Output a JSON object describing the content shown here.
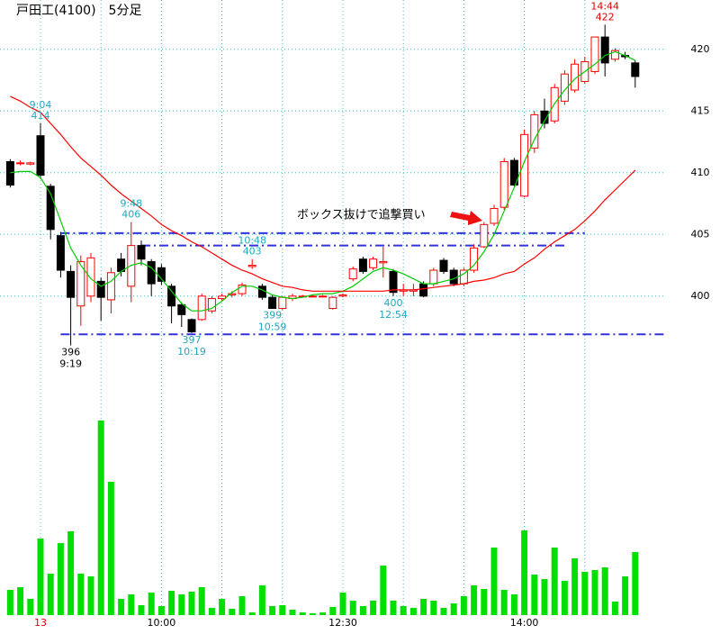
{
  "chart_data": {
    "type": "candlestick",
    "title": "戸田工(4100)　5分足",
    "categories": [
      null,
      null,
      null,
      "13",
      null,
      null,
      null,
      null,
      null,
      null,
      null,
      null,
      null,
      null,
      null,
      "10:00",
      null,
      null,
      null,
      null,
      null,
      null,
      null,
      null,
      null,
      null,
      null,
      null,
      null,
      null,
      null,
      null,
      null,
      "12:30",
      null,
      null,
      null,
      null,
      null,
      null,
      null,
      null,
      null,
      null,
      null,
      null,
      null,
      null,
      null,
      null,
      null,
      "14:00",
      null,
      null,
      null,
      null,
      null,
      null,
      null,
      null,
      null,
      null,
      null
    ],
    "open": [
      410.9,
      410.8,
      410.7,
      413.0,
      408.9,
      404.9,
      402.0,
      399.2,
      400.0,
      401.2,
      399.7,
      403.0,
      400.8,
      404.1,
      402.8,
      402.3,
      400.8,
      399.3,
      398.1,
      398.1,
      398.8,
      399.8,
      400.1,
      400.2,
      402.4,
      400.8,
      399.9,
      399.0,
      399.8,
      400.0,
      400.0,
      400.0,
      399.0,
      400.0,
      401.4,
      403.0,
      402.3,
      402.7,
      402.0,
      400.4,
      400.4,
      401.0,
      401.0,
      402.9,
      402.1,
      401.0,
      402.1,
      404.0,
      405.9,
      407.2,
      411.0,
      408.1,
      412.0,
      415.0,
      414.2,
      415.8,
      416.7,
      417.4,
      418.2,
      421.0,
      419.2,
      419.5,
      418.9
    ],
    "high": [
      411.1,
      411.0,
      410.9,
      414.0,
      409.1,
      405.2,
      402.5,
      403.3,
      403.5,
      401.5,
      402.3,
      403.5,
      406.0,
      404.5,
      403.0,
      402.6,
      401.0,
      399.5,
      398.2,
      400.2,
      400.0,
      400.2,
      400.4,
      401.1,
      403.0,
      401.0,
      400.1,
      400.0,
      400.2,
      400.1,
      400.1,
      400.1,
      400.0,
      400.2,
      402.4,
      403.2,
      403.2,
      404.0,
      402.2,
      401.0,
      401.0,
      401.2,
      402.3,
      403.1,
      402.3,
      402.3,
      404.2,
      406.0,
      407.4,
      411.2,
      411.2,
      413.5,
      415.0,
      416.0,
      417.2,
      418.3,
      419.2,
      419.4,
      421.0,
      422.0,
      420.1,
      419.8,
      419.1
    ],
    "low": [
      408.8,
      410.6,
      410.6,
      409.5,
      404.6,
      401.5,
      396.0,
      397.6,
      399.5,
      398.0,
      398.6,
      401.6,
      399.5,
      402.5,
      400.0,
      400.9,
      397.8,
      397.5,
      397.0,
      398.0,
      398.6,
      399.6,
      399.9,
      400.0,
      402.2,
      399.7,
      399.0,
      398.9,
      399.6,
      399.9,
      399.9,
      399.9,
      398.9,
      399.9,
      401.2,
      401.8,
      402.1,
      401.5,
      400.0,
      400.0,
      400.0,
      399.9,
      400.8,
      401.8,
      400.8,
      400.8,
      401.9,
      403.9,
      405.7,
      407.0,
      408.8,
      408.0,
      411.6,
      413.6,
      414.0,
      415.5,
      416.5,
      417.2,
      418.0,
      417.8,
      419.0,
      419.2,
      416.9
    ],
    "close": [
      409.0,
      410.8,
      410.8,
      409.8,
      405.4,
      402.1,
      399.9,
      402.8,
      403.1,
      399.9,
      401.9,
      402.0,
      404.1,
      403.0,
      401.0,
      401.2,
      399.2,
      398.5,
      397.1,
      400.0,
      399.8,
      400.0,
      400.2,
      400.9,
      402.5,
      399.9,
      399.0,
      399.9,
      400.0,
      400.0,
      400.0,
      400.0,
      399.9,
      400.1,
      402.2,
      402.0,
      403.0,
      402.8,
      400.3,
      400.5,
      400.5,
      400.0,
      402.1,
      402.0,
      401.0,
      402.1,
      403.9,
      405.8,
      407.1,
      410.9,
      409.0,
      413.1,
      414.7,
      414.0,
      416.9,
      418.0,
      418.8,
      419.0,
      421.0,
      418.9,
      419.9,
      419.4,
      417.8
    ],
    "up_color": "#ff0000",
    "down_color": "#000000",
    "ylim": [
      394,
      424
    ],
    "yticks": [
      400,
      405,
      410,
      415,
      420
    ],
    "grid": true,
    "grid_color": "#40c0c0",
    "moving_averages": [
      {
        "color": "#00cc00",
        "values": [
          410.0,
          410.1,
          410.1,
          409.6,
          408.3,
          406.1,
          403.9,
          402.5,
          401.4,
          400.8,
          401.2,
          402.0,
          402.5,
          402.7,
          402.3,
          401.4,
          400.4,
          399.4,
          398.8,
          398.8,
          399.0,
          399.6,
          400.3,
          400.8,
          400.8,
          400.5,
          400.1,
          399.9,
          399.8,
          399.9,
          400.1,
          400.2,
          400.2,
          400.4,
          400.8,
          401.4,
          402.0,
          402.3,
          402.1,
          401.8,
          401.4,
          401.0,
          401.0,
          401.2,
          401.4,
          401.8,
          402.5,
          403.6,
          405.0,
          406.9,
          408.8,
          410.9,
          412.7,
          414.2,
          415.6,
          416.7,
          417.6,
          418.2,
          418.8,
          419.5,
          419.8,
          419.5,
          419.1
        ]
      },
      {
        "color": "#ff0000",
        "values": [
          416.2,
          415.8,
          415.3,
          414.9,
          414.0,
          413.1,
          412.1,
          411.2,
          410.5,
          409.8,
          409.0,
          408.3,
          407.7,
          407.1,
          406.5,
          405.8,
          405.3,
          404.9,
          404.4,
          404.0,
          403.5,
          403.0,
          402.5,
          402.1,
          401.8,
          401.4,
          401.1,
          400.8,
          400.7,
          400.5,
          400.4,
          400.4,
          400.4,
          400.4,
          400.4,
          400.4,
          400.4,
          400.4,
          400.5,
          400.5,
          400.5,
          400.6,
          400.7,
          400.8,
          400.9,
          401.0,
          401.2,
          401.3,
          401.5,
          401.8,
          402.0,
          402.6,
          403.1,
          403.8,
          404.4,
          404.9,
          405.4,
          406.1,
          406.9,
          407.8,
          408.6,
          409.4,
          410.2
        ]
      }
    ],
    "volume": {
      "color": "#00e000",
      "ylim": [
        0,
        220
      ],
      "values": [
        28,
        31,
        18,
        85,
        46,
        80,
        93,
        46,
        43,
        216,
        148,
        18,
        23,
        11,
        25,
        10,
        27,
        23,
        26,
        31,
        8,
        18,
        7,
        21,
        3,
        33,
        10,
        11,
        6,
        3,
        2,
        3,
        9,
        25,
        16,
        10,
        16,
        55,
        16,
        10,
        8,
        18,
        16,
        8,
        13,
        21,
        33,
        29,
        75,
        28,
        23,
        94,
        45,
        40,
        75,
        38,
        63,
        48,
        50,
        53,
        15,
        43,
        70
      ]
    },
    "reference_lines": [
      {
        "value": 405.1,
        "start": 5,
        "end": 57,
        "color": "#3333dd"
      },
      {
        "value": 404.1,
        "start": 13,
        "end": 55,
        "color": "#3333dd"
      },
      {
        "value": 396.9,
        "start": 5,
        "end": 65,
        "color": "#3333dd"
      }
    ],
    "annotations": [
      {
        "index": 3,
        "position": "above",
        "color": "#20a8c0",
        "texts": [
          "9:04",
          "414"
        ]
      },
      {
        "index": 12,
        "position": "above",
        "color": "#20a8c0",
        "texts": [
          "9:48",
          "406"
        ]
      },
      {
        "index": 24,
        "position": "above",
        "color": "#20a8c0",
        "texts": [
          "10:48",
          "403"
        ]
      },
      {
        "index": 6,
        "position": "below",
        "color": "#000000",
        "texts": [
          "396",
          "9:19"
        ]
      },
      {
        "index": 18,
        "position": "below",
        "color": "#20a8c0",
        "texts": [
          "397",
          "10:19"
        ]
      },
      {
        "index": 26,
        "position": "below",
        "color": "#20a8c0",
        "texts": [
          "399",
          "10:59"
        ]
      },
      {
        "index": 38,
        "position": "below",
        "color": "#20a8c0",
        "texts": [
          "400",
          "12:54"
        ]
      },
      {
        "index": 59,
        "position": "above",
        "color": "#e00000",
        "texts": [
          "14:44",
          "422"
        ]
      }
    ],
    "callout": {
      "text": "ボックス抜けで追撃買い",
      "index": 47
    }
  }
}
